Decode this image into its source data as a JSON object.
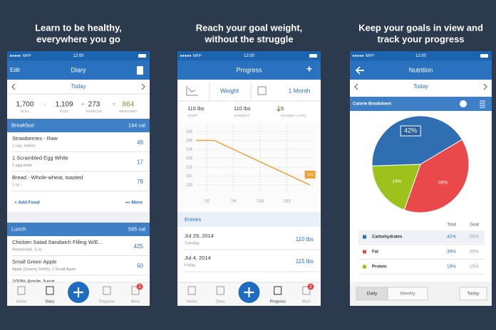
{
  "headings": [
    [
      "Learn to be healthy,",
      "everywhere you go"
    ],
    [
      "Reach your goal weight,",
      "without the struggle"
    ],
    [
      "Keep your goals in view and",
      "track your progress"
    ]
  ],
  "status": {
    "carrier": "MFP",
    "time": "12:00"
  },
  "tabs": [
    "Home",
    "Diary",
    "Progress",
    "More"
  ],
  "more_badge": "2",
  "diary": {
    "edit": "Edit",
    "title": "Diary",
    "date": "Today",
    "summary": {
      "items": [
        {
          "value": "1,700",
          "label": "GOAL"
        },
        {
          "value": "1,109",
          "label": "FOOD"
        },
        {
          "value": "273",
          "label": "EXERCISE"
        },
        {
          "value": "864",
          "label": "REMAINING"
        }
      ],
      "operators": [
        "-",
        "+",
        "="
      ]
    },
    "meals": [
      {
        "name": "Breakfast",
        "calories": "144 cal",
        "foods": [
          {
            "name": "Strawberries - Raw",
            "detail": "1 cup, halves",
            "calories": "49"
          },
          {
            "name": "1 Scrambled Egg White",
            "detail": "1 egg white",
            "calories": "17"
          },
          {
            "name": "Bread - Whole-wheat, toasted",
            "detail": "1 oz",
            "calories": "78"
          }
        ]
      },
      {
        "name": "Lunch",
        "calories": "595 cal",
        "foods": [
          {
            "name": "Chicken Salad Sandwich Filling W/E...",
            "detail": "Homemade, 5 oz",
            "calories": "425"
          },
          {
            "name": "Small Green Apple",
            "detail": "Apple (Granny Smith), 1 Small Apple",
            "calories": "50"
          },
          {
            "name": "100% Apple Juice"
          }
        ]
      }
    ],
    "add_food": "+ Add Food",
    "more": "••• More"
  },
  "progress": {
    "title": "Progress",
    "add": "+",
    "metric": "Weight",
    "range": "1 Month",
    "stats": [
      {
        "value": "115 lbs",
        "label": "START"
      },
      {
        "value": "110 lbs",
        "label": "CURRENT"
      },
      {
        "value": "5",
        "label": "CHANGE (-4.3%)"
      }
    ],
    "chart": {
      "type": "line",
      "x": [
        4,
        29
      ],
      "values": [
        115,
        110
      ],
      "xlim": [
        -4,
        30
      ],
      "xticks": [
        {
          "value": 2,
          "label": "7/2"
        },
        {
          "value": 9,
          "label": "7/9"
        },
        {
          "value": 16,
          "label": "7/16"
        },
        {
          "value": 23,
          "label": "7/23"
        }
      ],
      "ylim": [
        109.2,
        116.8
      ],
      "yticks": [
        116,
        115,
        114,
        113,
        112,
        111,
        110
      ],
      "color": "#f0a030",
      "grid": true
    },
    "entries_title": "Entries",
    "entries": [
      {
        "date": "Jul 29, 2014",
        "day": "Tuesday",
        "weight": "110 lbs"
      },
      {
        "date": "Jul 4, 2014",
        "day": "Friday",
        "weight": "115 lbs"
      }
    ]
  },
  "nutrition": {
    "title": "Nutrition",
    "date": "Today",
    "section": "Calorie Breakdown",
    "chart": {
      "type": "pie",
      "categories": [
        "Carbohydrates",
        "Fat",
        "Protein"
      ],
      "values": [
        42,
        39,
        19
      ],
      "value_labels": [
        "42%",
        "39%",
        "19%"
      ],
      "colors": [
        "#2f6fb1",
        "#e9494b",
        "#9cc21b"
      ]
    },
    "table_header": [
      "Total",
      "Goal"
    ],
    "goals": [
      "55%",
      "30%",
      "15%"
    ],
    "periods": [
      "Daily",
      "Weekly"
    ],
    "today": "Today"
  }
}
